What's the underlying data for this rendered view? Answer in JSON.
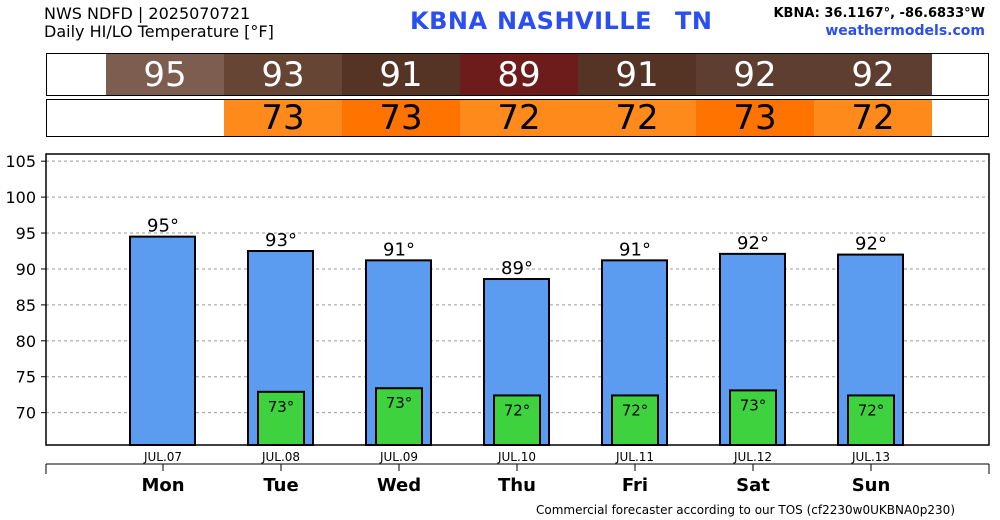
{
  "header": {
    "line1": "NWS NDFD | 2025070721",
    "line2": "Daily HI/LO Temperature [°F]",
    "station_id": "KBNA",
    "station_name": "NASHVILLE",
    "state": "TN",
    "coords": "KBNA: 36.1167°, -86.6833°W",
    "website": "weathermodels.com"
  },
  "hi_strip": [
    "95",
    "93",
    "91",
    "89",
    "91",
    "92",
    "92"
  ],
  "lo_strip": [
    "",
    "73",
    "73",
    "72",
    "72",
    "73",
    "72"
  ],
  "colors": {
    "hi_cells": [
      "#7d5d4f",
      "#664535",
      "#553325",
      "#6e1b1b",
      "#553325",
      "#5e3e30",
      "#5e3e30"
    ],
    "lo_cells": [
      "#ffffff",
      "#ff8a1c",
      "#ff7300",
      "#ff8a1c",
      "#ff8a1c",
      "#ff7300",
      "#ff8a1c"
    ],
    "hi_bar": "#5b9bf0",
    "lo_bar": "#3ed33e"
  },
  "chart_data": {
    "type": "bar",
    "categories": [
      "Mon",
      "Tue",
      "Wed",
      "Thu",
      "Fri",
      "Sat",
      "Sun"
    ],
    "dates": [
      "JUL.07",
      "JUL.08",
      "JUL.09",
      "JUL.10",
      "JUL.11",
      "JUL.12",
      "JUL.13"
    ],
    "series": [
      {
        "values": [
          94.5,
          92.5,
          91.2,
          88.6,
          91.2,
          92.1,
          92.0
        ],
        "labels": [
          "95°",
          "93°",
          "91°",
          "89°",
          "91°",
          "92°",
          "92°"
        ]
      },
      {
        "values": [
          null,
          72.9,
          73.4,
          72.4,
          72.4,
          73.1,
          72.4
        ],
        "labels": [
          "",
          "73°",
          "73°",
          "72°",
          "72°",
          "73°",
          "72°"
        ]
      }
    ],
    "yticks": [
      70,
      75,
      80,
      85,
      90,
      95,
      100,
      105
    ],
    "ylim": [
      65.5,
      106
    ],
    "grid": true
  },
  "footer": "Commercial forecaster according to our TOS (cf2230w0UKBNA0p230)"
}
